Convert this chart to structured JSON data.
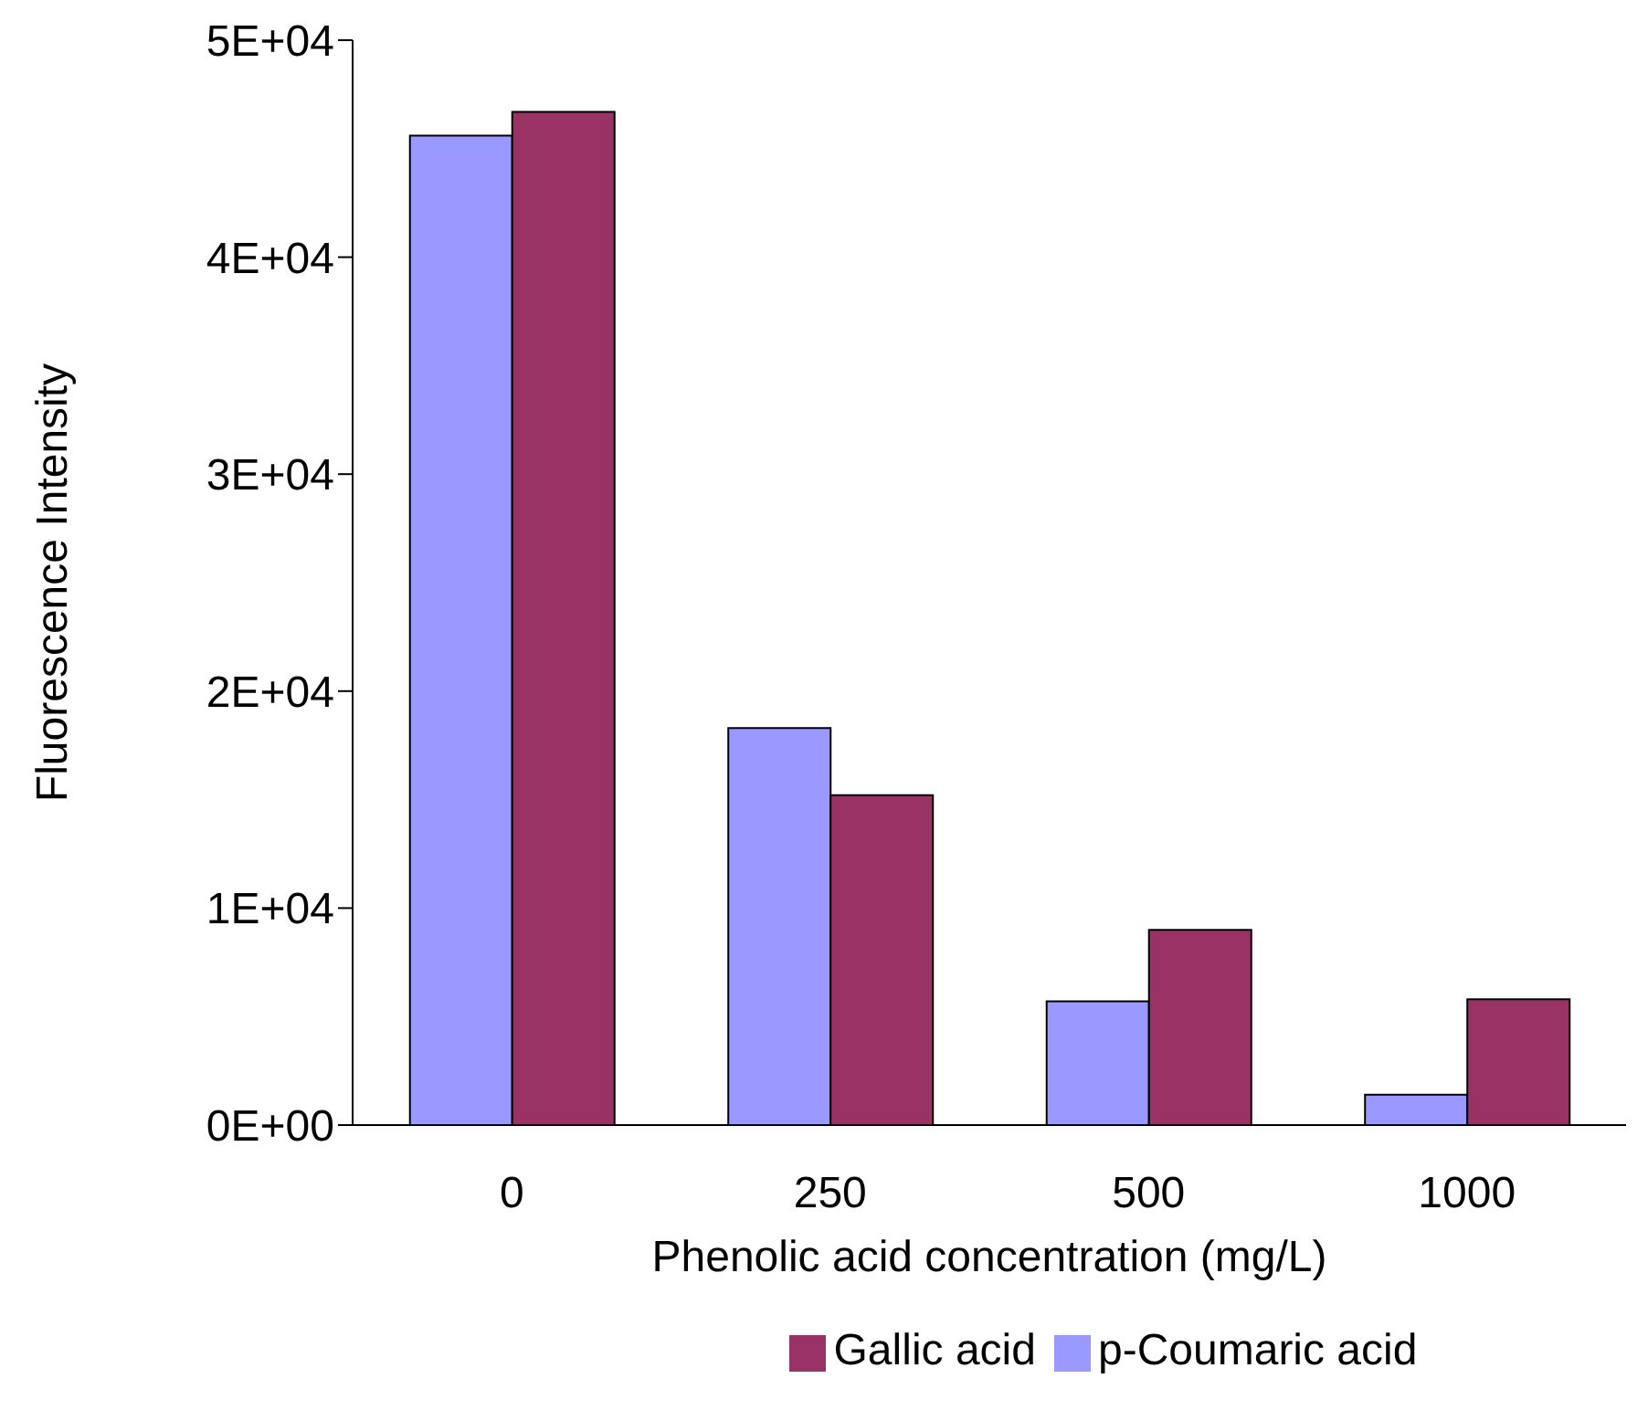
{
  "chart_data": {
    "type": "bar",
    "xlabel": "Phenolic acid concentration (mg/L)",
    "ylabel": "Fluorescence Intensity",
    "categories": [
      "0",
      "250",
      "500",
      "1000"
    ],
    "series": [
      {
        "name": "p-Coumaric acid",
        "color": "#9999ff",
        "values": [
          45600,
          18300,
          5700,
          1400
        ]
      },
      {
        "name": "Gallic acid",
        "color": "#993366",
        "values": [
          46700,
          15200,
          9000,
          5800
        ]
      }
    ],
    "ylim": [
      0,
      50000
    ],
    "yticks": [
      {
        "value": 0,
        "label": "0E+00"
      },
      {
        "value": 10000,
        "label": "1E+04"
      },
      {
        "value": 20000,
        "label": "2E+04"
      },
      {
        "value": 30000,
        "label": "3E+04"
      },
      {
        "value": 40000,
        "label": "4E+04"
      },
      {
        "value": 50000,
        "label": "5E+04"
      }
    ],
    "grid": false,
    "legend": "bottom"
  }
}
